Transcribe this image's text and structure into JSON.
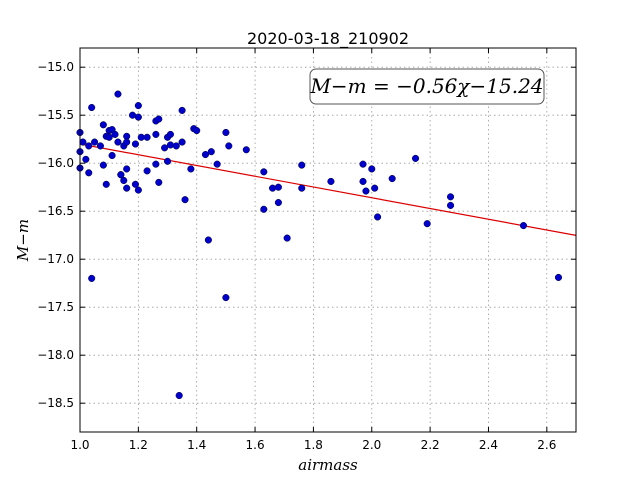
{
  "chart_data": {
    "type": "scatter",
    "title": "2020-03-18_210902",
    "xlabel": "airmass",
    "ylabel": "M−m",
    "xlim": [
      1.0,
      2.7
    ],
    "ylim": [
      -18.8,
      -14.8
    ],
    "y_inverted": true,
    "grid": true,
    "x_ticks": [
      1.0,
      1.2,
      1.4,
      1.6,
      1.8,
      2.0,
      2.2,
      2.4,
      2.6
    ],
    "x_tick_labels": [
      "1.0",
      "1.2",
      "1.4",
      "1.6",
      "1.8",
      "2.0",
      "2.2",
      "2.4",
      "2.6"
    ],
    "y_ticks": [
      -15.0,
      -15.5,
      -16.0,
      -16.5,
      -17.0,
      -17.5,
      -18.0,
      -18.5
    ],
    "y_tick_labels": [
      "−15.0",
      "−15.5",
      "−16.0",
      "−16.5",
      "−17.0",
      "−17.5",
      "−18.0",
      "−18.5"
    ],
    "annotation": "M−m = −0.56χ−15.24",
    "annotation_position": "top-right",
    "colors": {
      "points": "#0000cc",
      "fit_line": "#dd0000"
    },
    "fit": {
      "slope": -0.56,
      "intercept": -15.24
    },
    "points": [
      [
        1.0,
        -15.68
      ],
      [
        1.0,
        -15.88
      ],
      [
        1.0,
        -16.05
      ],
      [
        1.01,
        -15.78
      ],
      [
        1.02,
        -15.96
      ],
      [
        1.03,
        -16.1
      ],
      [
        1.03,
        -15.82
      ],
      [
        1.04,
        -15.42
      ],
      [
        1.04,
        -17.2
      ],
      [
        1.05,
        -15.78
      ],
      [
        1.07,
        -15.82
      ],
      [
        1.08,
        -15.6
      ],
      [
        1.08,
        -16.02
      ],
      [
        1.09,
        -16.22
      ],
      [
        1.09,
        -15.72
      ],
      [
        1.1,
        -15.66
      ],
      [
        1.1,
        -15.73
      ],
      [
        1.11,
        -15.65
      ],
      [
        1.11,
        -15.92
      ],
      [
        1.12,
        -15.7
      ],
      [
        1.13,
        -15.28
      ],
      [
        1.13,
        -15.78
      ],
      [
        1.14,
        -16.12
      ],
      [
        1.14,
        -16.12
      ],
      [
        1.15,
        -15.82
      ],
      [
        1.15,
        -16.18
      ],
      [
        1.16,
        -15.72
      ],
      [
        1.16,
        -15.78
      ],
      [
        1.16,
        -16.26
      ],
      [
        1.16,
        -16.06
      ],
      [
        1.18,
        -15.5
      ],
      [
        1.19,
        -15.8
      ],
      [
        1.19,
        -16.22
      ],
      [
        1.2,
        -15.4
      ],
      [
        1.2,
        -15.52
      ],
      [
        1.2,
        -16.28
      ],
      [
        1.21,
        -15.73
      ],
      [
        1.23,
        -15.73
      ],
      [
        1.23,
        -16.08
      ],
      [
        1.26,
        -15.56
      ],
      [
        1.26,
        -15.7
      ],
      [
        1.26,
        -16.01
      ],
      [
        1.27,
        -15.54
      ],
      [
        1.27,
        -16.2
      ],
      [
        1.29,
        -15.84
      ],
      [
        1.3,
        -15.73
      ],
      [
        1.3,
        -15.98
      ],
      [
        1.31,
        -15.81
      ],
      [
        1.31,
        -15.7
      ],
      [
        1.33,
        -15.82
      ],
      [
        1.34,
        -18.42
      ],
      [
        1.35,
        -15.78
      ],
      [
        1.35,
        -15.45
      ],
      [
        1.36,
        -16.38
      ],
      [
        1.38,
        -16.06
      ],
      [
        1.39,
        -15.64
      ],
      [
        1.4,
        -15.66
      ],
      [
        1.43,
        -15.91
      ],
      [
        1.44,
        -16.8
      ],
      [
        1.45,
        -15.88
      ],
      [
        1.47,
        -16.01
      ],
      [
        1.5,
        -15.68
      ],
      [
        1.5,
        -17.4
      ],
      [
        1.51,
        -15.82
      ],
      [
        1.57,
        -15.86
      ],
      [
        1.63,
        -16.09
      ],
      [
        1.63,
        -16.48
      ],
      [
        1.66,
        -16.26
      ],
      [
        1.68,
        -16.41
      ],
      [
        1.68,
        -16.25
      ],
      [
        1.71,
        -16.78
      ],
      [
        1.76,
        -16.02
      ],
      [
        1.76,
        -16.26
      ],
      [
        1.86,
        -16.19
      ],
      [
        1.97,
        -16.01
      ],
      [
        1.97,
        -16.19
      ],
      [
        1.98,
        -16.29
      ],
      [
        2.0,
        -16.06
      ],
      [
        2.01,
        -16.26
      ],
      [
        2.02,
        -16.56
      ],
      [
        2.07,
        -16.16
      ],
      [
        2.15,
        -15.95
      ],
      [
        2.19,
        -16.63
      ],
      [
        2.27,
        -16.35
      ],
      [
        2.27,
        -16.44
      ],
      [
        2.52,
        -16.65
      ],
      [
        2.64,
        -17.19
      ]
    ]
  }
}
